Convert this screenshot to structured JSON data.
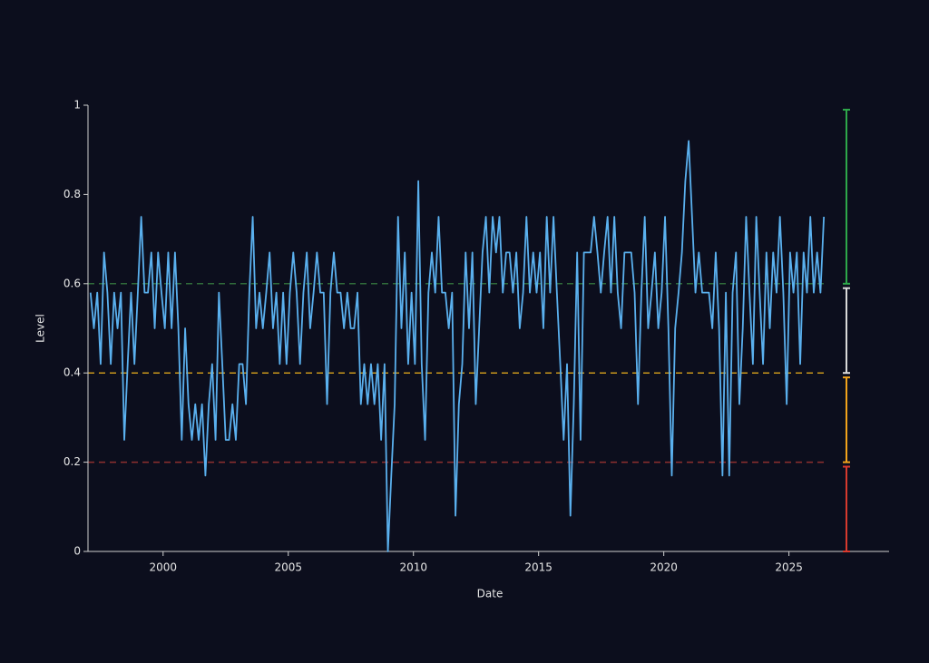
{
  "chart_data": {
    "type": "line",
    "xlabel": "Date",
    "ylabel": "Level",
    "xlim": [
      1997,
      2029
    ],
    "ylim": [
      0,
      1
    ],
    "xticks": [
      2000,
      2005,
      2010,
      2015,
      2020,
      2025
    ],
    "yticks": [
      0,
      0.2,
      0.4,
      0.6,
      0.8,
      1
    ],
    "thresholds": [
      {
        "value": 0.6,
        "color": "#2f6b3a"
      },
      {
        "value": 0.4,
        "color": "#c9961c"
      },
      {
        "value": 0.2,
        "color": "#8f2f2f"
      }
    ],
    "bands": [
      {
        "range": [
          0,
          0.19
        ],
        "color": "#d83a2e"
      },
      {
        "range": [
          0.2,
          0.39
        ],
        "color": "#f2a31b"
      },
      {
        "range": [
          0.4,
          0.59
        ],
        "color": "#d9d9d9"
      },
      {
        "range": [
          0.6,
          0.99
        ],
        "color": "#2ea84a"
      }
    ],
    "series": [
      {
        "name": "Level",
        "color": "#5ab0ee",
        "x": [
          1997.1,
          1997.235,
          1997.37,
          1997.505,
          1997.64,
          1997.775,
          1997.91,
          1998.045,
          1998.18,
          1998.315,
          1998.45,
          1998.585,
          1998.72,
          1998.855,
          1998.99,
          1999.125,
          1999.26,
          1999.395,
          1999.53,
          1999.665,
          1999.8,
          1999.935,
          2000.07,
          2000.205,
          2000.34,
          2000.475,
          2000.61,
          2000.745,
          2000.88,
          2001.015,
          2001.15,
          2001.285,
          2001.42,
          2001.555,
          2001.69,
          2001.825,
          2001.96,
          2002.095,
          2002.23,
          2002.365,
          2002.5,
          2002.635,
          2002.77,
          2002.905,
          2003.04,
          2003.175,
          2003.31,
          2003.445,
          2003.58,
          2003.715,
          2003.85,
          2003.985,
          2004.12,
          2004.255,
          2004.39,
          2004.525,
          2004.66,
          2004.795,
          2004.93,
          2005.065,
          2005.2,
          2005.335,
          2005.47,
          2005.605,
          2005.74,
          2005.875,
          2006.01,
          2006.145,
          2006.28,
          2006.415,
          2006.55,
          2006.685,
          2006.82,
          2006.955,
          2007.09,
          2007.225,
          2007.36,
          2007.495,
          2007.63,
          2007.765,
          2007.9,
          2008.035,
          2008.17,
          2008.305,
          2008.44,
          2008.575,
          2008.71,
          2008.845,
          2008.98,
          2009.115,
          2009.25,
          2009.385,
          2009.52,
          2009.655,
          2009.79,
          2009.925,
          2010.06,
          2010.195,
          2010.33,
          2010.465,
          2010.6,
          2010.735,
          2010.87,
          2011.005,
          2011.14,
          2011.275,
          2011.41,
          2011.545,
          2011.68,
          2011.815,
          2011.95,
          2012.085,
          2012.22,
          2012.355,
          2012.49,
          2012.625,
          2012.76,
          2012.895,
          2013.03,
          2013.165,
          2013.3,
          2013.435,
          2013.57,
          2013.705,
          2013.84,
          2013.975,
          2014.11,
          2014.245,
          2014.38,
          2014.515,
          2014.65,
          2014.785,
          2014.92,
          2015.055,
          2015.19,
          2015.325,
          2015.46,
          2015.595,
          2015.73,
          2015.865,
          2016,
          2016.135,
          2016.27,
          2016.405,
          2016.54,
          2016.675,
          2016.81,
          2016.945,
          2017.08,
          2017.215,
          2017.35,
          2017.485,
          2017.62,
          2017.755,
          2017.89,
          2018.025,
          2018.16,
          2018.295,
          2018.43,
          2018.565,
          2018.7,
          2018.835,
          2018.97,
          2019.105,
          2019.24,
          2019.375,
          2019.51,
          2019.645,
          2019.78,
          2019.915,
          2020.05,
          2020.185,
          2020.32,
          2020.455,
          2020.59,
          2020.725,
          2020.86,
          2020.995,
          2021.13,
          2021.265,
          2021.4,
          2021.535,
          2021.67,
          2021.805,
          2021.94,
          2022.075,
          2022.21,
          2022.345,
          2022.48,
          2022.615,
          2022.75,
          2022.885,
          2023.02,
          2023.155,
          2023.29,
          2023.425,
          2023.56,
          2023.695,
          2023.83,
          2023.965,
          2024.1,
          2024.235,
          2024.37,
          2024.505,
          2024.64,
          2024.775,
          2024.91,
          2025.045,
          2025.18,
          2025.315,
          2025.45,
          2025.585,
          2025.72,
          2025.855,
          2025.99,
          2026.125,
          2026.26,
          2026.395
        ],
        "values": [
          0.58,
          0.5,
          0.58,
          0.42,
          0.67,
          0.58,
          0.42,
          0.58,
          0.5,
          0.58,
          0.25,
          0.42,
          0.58,
          0.42,
          0.58,
          0.75,
          0.58,
          0.58,
          0.67,
          0.5,
          0.67,
          0.58,
          0.5,
          0.67,
          0.5,
          0.67,
          0.5,
          0.25,
          0.5,
          0.33,
          0.25,
          0.33,
          0.25,
          0.33,
          0.17,
          0.33,
          0.42,
          0.25,
          0.58,
          0.42,
          0.25,
          0.25,
          0.33,
          0.25,
          0.42,
          0.42,
          0.33,
          0.58,
          0.75,
          0.5,
          0.58,
          0.5,
          0.58,
          0.67,
          0.5,
          0.58,
          0.42,
          0.58,
          0.42,
          0.58,
          0.67,
          0.58,
          0.42,
          0.58,
          0.67,
          0.5,
          0.58,
          0.67,
          0.58,
          0.58,
          0.33,
          0.58,
          0.67,
          0.58,
          0.58,
          0.5,
          0.58,
          0.5,
          0.5,
          0.58,
          0.33,
          0.42,
          0.33,
          0.42,
          0.33,
          0.42,
          0.25,
          0.42,
          0,
          0.17,
          0.33,
          0.75,
          0.5,
          0.67,
          0.42,
          0.58,
          0.42,
          0.83,
          0.42,
          0.25,
          0.58,
          0.67,
          0.58,
          0.75,
          0.58,
          0.58,
          0.5,
          0.58,
          0.08,
          0.33,
          0.42,
          0.67,
          0.5,
          0.67,
          0.33,
          0.5,
          0.67,
          0.75,
          0.58,
          0.75,
          0.67,
          0.75,
          0.58,
          0.67,
          0.67,
          0.58,
          0.67,
          0.5,
          0.58,
          0.75,
          0.58,
          0.67,
          0.58,
          0.67,
          0.5,
          0.75,
          0.58,
          0.75,
          0.58,
          0.42,
          0.25,
          0.42,
          0.08,
          0.33,
          0.67,
          0.25,
          0.67,
          0.67,
          0.67,
          0.75,
          0.67,
          0.58,
          0.67,
          0.75,
          0.58,
          0.75,
          0.58,
          0.5,
          0.67,
          0.67,
          0.67,
          0.58,
          0.33,
          0.58,
          0.75,
          0.5,
          0.58,
          0.67,
          0.5,
          0.58,
          0.75,
          0.5,
          0.17,
          0.5,
          0.58,
          0.67,
          0.83,
          0.92,
          0.75,
          0.58,
          0.67,
          0.58,
          0.58,
          0.58,
          0.5,
          0.67,
          0.5,
          0.17,
          0.58,
          0.17,
          0.58,
          0.67,
          0.33,
          0.5,
          0.75,
          0.58,
          0.42,
          0.75,
          0.58,
          0.42,
          0.67,
          0.5,
          0.67,
          0.58,
          0.75,
          0.58,
          0.33,
          0.67,
          0.58,
          0.67,
          0.42,
          0.67,
          0.58,
          0.75,
          0.58,
          0.67,
          0.58,
          0.75
        ]
      }
    ]
  }
}
